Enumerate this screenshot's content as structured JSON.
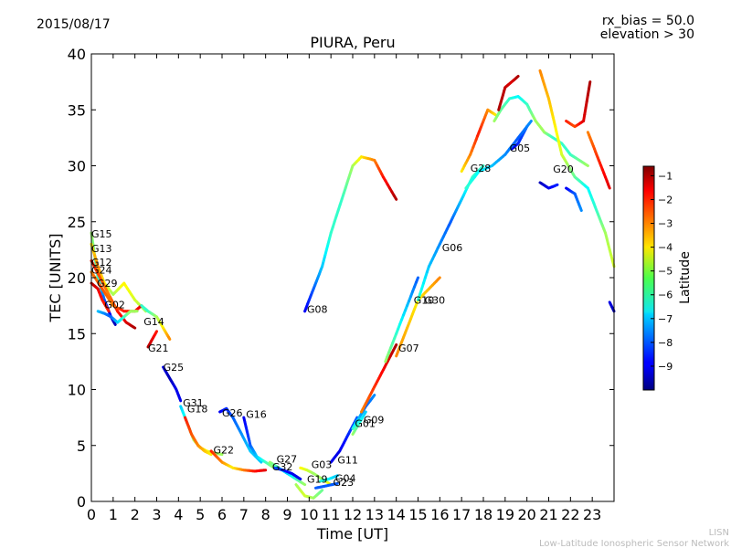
{
  "header": {
    "date": "2015/08/17",
    "rx_bias": "rx_bias = 50.0",
    "elevation": "elevation > 30"
  },
  "footer": {
    "line1": "LISN",
    "line2": "Low-Latitude Ionospheric Sensor Network"
  },
  "chart_data": {
    "type": "scatter",
    "title": "PIURA, Peru",
    "xlabel": "Time [UT]",
    "ylabel": "TEC [UNITS]",
    "xlim": [
      0,
      24
    ],
    "ylim": [
      0,
      40
    ],
    "xticks": [
      0,
      1,
      2,
      3,
      4,
      5,
      6,
      7,
      8,
      9,
      10,
      11,
      12,
      13,
      14,
      15,
      16,
      17,
      18,
      19,
      20,
      21,
      22,
      23
    ],
    "yticks": [
      0,
      5,
      10,
      15,
      20,
      25,
      30,
      35,
      40
    ],
    "colorbar": {
      "label": "Latitude",
      "min": -10,
      "max": -0.6,
      "ticks": [
        -1,
        -2,
        -3,
        -4,
        -5,
        -6,
        -7,
        -8,
        -9
      ]
    },
    "series": [
      {
        "name": "G15",
        "x": [
          0.0,
          0.3,
          0.6,
          0.9,
          1.1
        ],
        "y": [
          24,
          20,
          18,
          16.5,
          15.8
        ],
        "lat": [
          -5,
          -6,
          -8,
          -9,
          -9.5
        ]
      },
      {
        "name": "G13",
        "x": [
          0.0,
          0.3,
          0.6,
          1.0,
          1.5,
          2.0,
          2.5
        ],
        "y": [
          23,
          21,
          19.5,
          18.5,
          19.5,
          18,
          17
        ],
        "lat": [
          -4,
          -3,
          -4,
          -5,
          -4,
          -4.5,
          -5
        ]
      },
      {
        "name": "G12",
        "x": [
          0.0,
          0.4,
          0.8,
          1.2,
          1.6,
          2.0
        ],
        "y": [
          21.5,
          20,
          18.5,
          17,
          16,
          15.5
        ],
        "lat": [
          -2,
          -2.5,
          -3,
          -2,
          -1.5,
          -1
        ]
      },
      {
        "name": "G24",
        "x": [
          0.0,
          0.5,
          1.0,
          1.5,
          2.0,
          2.3
        ],
        "y": [
          20.5,
          19,
          17.5,
          17,
          17,
          17.5
        ],
        "lat": [
          -3,
          -2.5,
          -3,
          -2,
          -2,
          -1.5
        ]
      },
      {
        "name": "G29",
        "x": [
          0.0,
          0.3,
          0.5,
          0.8
        ],
        "y": [
          19.5,
          19,
          18,
          17
        ],
        "lat": [
          -1,
          -1.5,
          -2,
          -2
        ]
      },
      {
        "name": "G02",
        "x": [
          0.3,
          0.6,
          0.9,
          1.2,
          1.5,
          1.8,
          2.1
        ],
        "y": [
          17,
          16.8,
          16.5,
          16,
          16.5,
          17,
          17
        ],
        "lat": [
          -7,
          -7.5,
          -8,
          -7,
          -6,
          -5,
          -5
        ]
      },
      {
        "name": "G14",
        "x": [
          2.3,
          2.6,
          3.0,
          3.3,
          3.6
        ],
        "y": [
          17.5,
          17,
          16.5,
          15.5,
          14.5
        ],
        "lat": [
          -6,
          -6,
          -5,
          -4,
          -3
        ]
      },
      {
        "name": "G21",
        "x": [
          2.6,
          2.8,
          3.0
        ],
        "y": [
          13.8,
          14.5,
          15.2
        ],
        "lat": [
          -1,
          -1.5,
          -2
        ]
      },
      {
        "name": "G25",
        "x": [
          3.3,
          3.6,
          3.9,
          4.1
        ],
        "y": [
          12,
          11,
          10,
          9
        ],
        "lat": [
          -9,
          -9.5,
          -9,
          -9
        ]
      },
      {
        "name": "G31",
        "x": [
          4.1,
          4.4,
          4.7,
          5.0,
          5.3,
          5.7,
          6.0
        ],
        "y": [
          8.5,
          7,
          5.5,
          4.8,
          4.5,
          4.3,
          4.2
        ],
        "lat": [
          -7,
          -6,
          -5,
          -4,
          -4,
          -5,
          -5
        ]
      },
      {
        "name": "G18",
        "x": [
          4.3,
          4.6,
          4.9,
          5.2,
          5.5
        ],
        "y": [
          7.5,
          6,
          5,
          4.5,
          4.2
        ],
        "lat": [
          -2,
          -2.5,
          -3,
          -3.5,
          -4
        ]
      },
      {
        "name": "G26",
        "x": [
          5.9,
          6.2,
          6.5,
          6.9,
          7.3,
          7.8
        ],
        "y": [
          8,
          8.3,
          7.5,
          6,
          4.5,
          3.5
        ],
        "lat": [
          -9,
          -8.5,
          -8,
          -7.5,
          -7,
          -7
        ]
      },
      {
        "name": "G16",
        "x": [
          7.0,
          7.3,
          7.6,
          8.0,
          8.4
        ],
        "y": [
          7.5,
          5,
          4,
          3.5,
          3
        ],
        "lat": [
          -9,
          -8,
          -7,
          -6,
          -5
        ]
      },
      {
        "name": "G22",
        "x": [
          5.5,
          6.0,
          6.5,
          7.0,
          7.5,
          8.0
        ],
        "y": [
          4.5,
          3.5,
          3,
          2.8,
          2.7,
          2.8
        ],
        "lat": [
          -2,
          -3,
          -4,
          -3,
          -2,
          -1.5
        ]
      },
      {
        "name": "G27",
        "x": [
          8.2,
          8.6,
          9.0,
          9.4,
          9.8
        ],
        "y": [
          3.5,
          3,
          2.5,
          2,
          1.5
        ],
        "lat": [
          -5,
          -6,
          -7,
          -6,
          -5
        ]
      },
      {
        "name": "G32",
        "x": [
          8.4,
          8.8,
          9.2,
          9.6
        ],
        "y": [
          3,
          2.8,
          2.5,
          2
        ],
        "lat": [
          -8,
          -8.5,
          -9,
          -9
        ]
      },
      {
        "name": "G03",
        "x": [
          9.6,
          9.9,
          10.2,
          10.6,
          11.0
        ],
        "y": [
          3,
          2.8,
          2.5,
          2,
          1.5
        ],
        "lat": [
          -4,
          -4.5,
          -5,
          -5,
          -4
        ]
      },
      {
        "name": "G19",
        "x": [
          9.4,
          9.8,
          10.2,
          10.6
        ],
        "y": [
          1.5,
          0.5,
          0.3,
          1
        ],
        "lat": [
          -5,
          -4.5,
          -5,
          -5.5
        ]
      },
      {
        "name": "G11",
        "x": [
          11.0,
          11.4,
          11.8,
          12.2
        ],
        "y": [
          3.5,
          4.5,
          6,
          7.5
        ],
        "lat": [
          -9,
          -9,
          -8.5,
          -8
        ]
      },
      {
        "name": "G04",
        "x": [
          10.5,
          10.9,
          11.3
        ],
        "y": [
          1.8,
          2,
          2.3
        ],
        "lat": [
          -6,
          -6.5,
          -7
        ]
      },
      {
        "name": "G23",
        "x": [
          10.3,
          10.8,
          11.3
        ],
        "y": [
          1.2,
          1.4,
          1.6
        ],
        "lat": [
          -8,
          -8,
          -8
        ]
      },
      {
        "name": "G09",
        "x": [
          12.0,
          12.3,
          12.6,
          13.0
        ],
        "y": [
          6.5,
          7.5,
          8.5,
          9.5
        ],
        "lat": [
          -6,
          -7,
          -8,
          -7.5
        ]
      },
      {
        "name": "G01",
        "x": [
          12.0,
          12.3,
          12.6
        ],
        "y": [
          6,
          7,
          8
        ],
        "lat": [
          -5,
          -6,
          -7
        ]
      },
      {
        "name": "G08",
        "x": [
          9.8,
          10.2,
          10.6,
          11.0,
          11.5,
          12.0,
          12.4,
          13.0,
          13.4,
          14.0
        ],
        "y": [
          17,
          19,
          21,
          24,
          27,
          30,
          30.8,
          30.5,
          29,
          27
        ],
        "lat": [
          -9,
          -8,
          -7,
          -6,
          -6,
          -5,
          -4,
          -3,
          -2,
          -1
        ]
      },
      {
        "name": "G07",
        "x": [
          12.4,
          12.8,
          13.2,
          13.6,
          14.0
        ],
        "y": [
          8,
          9.5,
          11,
          12.5,
          14
        ],
        "lat": [
          -3,
          -2.5,
          -2,
          -1.5,
          -1
        ]
      },
      {
        "name": "G10",
        "x": [
          13.5,
          14.0,
          14.5,
          15.0
        ],
        "y": [
          12.5,
          15,
          17.5,
          20
        ],
        "lat": [
          -5,
          -6,
          -7,
          -8
        ]
      },
      {
        "name": "G30",
        "x": [
          14.0,
          14.5,
          15.0,
          15.5,
          16.0
        ],
        "y": [
          13,
          15.5,
          18,
          19,
          20
        ],
        "lat": [
          -3,
          -3.5,
          -4,
          -3.5,
          -3
        ]
      },
      {
        "name": "G06",
        "x": [
          15.0,
          15.5,
          16.0,
          16.5,
          17.0,
          17.5,
          18.0
        ],
        "y": [
          18,
          21,
          23,
          25,
          27,
          29,
          30
        ],
        "lat": [
          -6,
          -7,
          -7.5,
          -8,
          -7,
          -6,
          -6
        ]
      },
      {
        "name": "G28",
        "x": [
          17.0,
          17.4,
          17.8,
          18.2,
          18.6
        ],
        "y": [
          29.5,
          31,
          33,
          35,
          34.5
        ],
        "lat": [
          -4,
          -3,
          -2,
          -3,
          -4
        ]
      },
      {
        "name": "G05",
        "x": [
          18.5,
          18.8,
          19.2,
          19.6,
          20.0,
          20.4,
          20.8,
          21.2,
          21.6,
          22.0,
          22.4,
          22.8
        ],
        "y": [
          34,
          35,
          36,
          36.2,
          35.5,
          34,
          33,
          32.5,
          32,
          31,
          30.5,
          30
        ],
        "lat": [
          -5,
          -5.5,
          -6,
          -6.5,
          -6,
          -5,
          -5,
          -6,
          -6,
          -6,
          -5.5,
          -5
        ]
      },
      {
        "name": "G20",
        "x": [
          20.6,
          21.0,
          21.3,
          21.6,
          21.9,
          22.2,
          22.5,
          22.8,
          23.2,
          23.6,
          24.0
        ],
        "y": [
          38.5,
          36,
          33.5,
          31,
          30,
          29,
          28.5,
          28,
          26,
          24,
          21
        ],
        "lat": [
          -3,
          -3.5,
          -4,
          -4.5,
          -5,
          -5.5,
          -6,
          -6.5,
          -6,
          -5,
          -4.5
        ]
      }
    ],
    "extra_segments": [
      {
        "x": [
          18.7,
          19.0,
          19.3,
          19.6
        ],
        "y": [
          35,
          37,
          37.5,
          38
        ],
        "lat": [
          -1,
          -1.2,
          -1.5,
          -1
        ]
      },
      {
        "x": [
          21.8,
          22.2,
          22.6,
          22.9
        ],
        "y": [
          34,
          33.5,
          34,
          37.5
        ],
        "lat": [
          -2,
          -2.5,
          -1.5,
          -1
        ]
      },
      {
        "x": [
          22.8,
          23.1,
          23.4,
          23.8
        ],
        "y": [
          33,
          31.5,
          30,
          28
        ],
        "lat": [
          -3,
          -2.5,
          -2,
          -1.5
        ]
      },
      {
        "x": [
          20.6,
          21.0,
          21.4
        ],
        "y": [
          28.5,
          28,
          28.3
        ],
        "lat": [
          -9.5,
          -9,
          -8.5
        ]
      },
      {
        "x": [
          21.8,
          22.2,
          22.5
        ],
        "y": [
          28,
          27.5,
          26
        ],
        "lat": [
          -9,
          -8,
          -7.5
        ]
      },
      {
        "x": [
          19.3,
          19.6,
          20.0
        ],
        "y": [
          31.5,
          32,
          33.5
        ],
        "lat": [
          -9,
          -8.5,
          -8
        ]
      },
      {
        "x": [
          23.8,
          24.0
        ],
        "y": [
          17.8,
          17
        ],
        "lat": [
          -9,
          -9.5
        ]
      },
      {
        "x": [
          17.2,
          17.8,
          18.4,
          19.0,
          19.6,
          20.2
        ],
        "y": [
          28,
          29.5,
          30,
          31,
          32.5,
          34
        ],
        "lat": [
          -6,
          -6.5,
          -7,
          -7.5,
          -8,
          -7.5
        ]
      }
    ],
    "labels": [
      {
        "text": "G15",
        "x": 0.0,
        "y": 23.9
      },
      {
        "text": "G13",
        "x": 0.0,
        "y": 22.6
      },
      {
        "text": "G12",
        "x": 0.0,
        "y": 21.4
      },
      {
        "text": "G24",
        "x": 0.0,
        "y": 20.7
      },
      {
        "text": "G29",
        "x": 0.25,
        "y": 19.5
      },
      {
        "text": "G02",
        "x": 0.6,
        "y": 17.6
      },
      {
        "text": "G14",
        "x": 2.4,
        "y": 16.1
      },
      {
        "text": "G21",
        "x": 2.6,
        "y": 13.7
      },
      {
        "text": "G25",
        "x": 3.3,
        "y": 12.0
      },
      {
        "text": "G31",
        "x": 4.2,
        "y": 8.8
      },
      {
        "text": "G18",
        "x": 4.4,
        "y": 8.3
      },
      {
        "text": "G26",
        "x": 6.0,
        "y": 7.9
      },
      {
        "text": "G16",
        "x": 7.1,
        "y": 7.8
      },
      {
        "text": "G22",
        "x": 5.6,
        "y": 4.6
      },
      {
        "text": "G27",
        "x": 8.5,
        "y": 3.8
      },
      {
        "text": "G32",
        "x": 8.3,
        "y": 3.1
      },
      {
        "text": "G03",
        "x": 10.1,
        "y": 3.3
      },
      {
        "text": "G11",
        "x": 11.3,
        "y": 3.7
      },
      {
        "text": "G19",
        "x": 9.9,
        "y": 2.0
      },
      {
        "text": "G04",
        "x": 11.2,
        "y": 2.1
      },
      {
        "text": "G23",
        "x": 11.1,
        "y": 1.7
      },
      {
        "text": "G09",
        "x": 12.5,
        "y": 7.3
      },
      {
        "text": "G01",
        "x": 12.1,
        "y": 7.0
      },
      {
        "text": "G08",
        "x": 9.9,
        "y": 17.2
      },
      {
        "text": "G07",
        "x": 14.1,
        "y": 13.7
      },
      {
        "text": "G10",
        "x": 14.8,
        "y": 18.0
      },
      {
        "text": "G30",
        "x": 15.3,
        "y": 18.0
      },
      {
        "text": "G06",
        "x": 16.1,
        "y": 22.7
      },
      {
        "text": "G28",
        "x": 17.4,
        "y": 29.8
      },
      {
        "text": "G05",
        "x": 19.2,
        "y": 31.6
      },
      {
        "text": "G20",
        "x": 21.2,
        "y": 29.7
      }
    ]
  }
}
